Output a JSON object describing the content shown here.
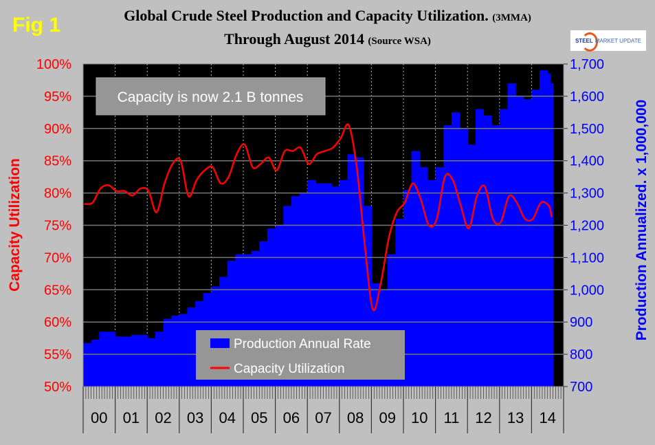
{
  "figure_label": "Fig 1",
  "title_main": "Global Crude Steel Production and Capacity Utilization.",
  "title_main_note": "(3MMA)",
  "title_sub": "Through August 2014",
  "title_sub_note": "(Source WSA)",
  "logo": {
    "bold": "STEEL",
    "rest": "MARKET UPDATE"
  },
  "annotation": "Capacity is now 2.1 B tonnes",
  "colors": {
    "production": "#0000ff",
    "utilization": "#ff0000",
    "plot_bg": "#000000",
    "page_bg": "#c0c0c0"
  },
  "chart_data": {
    "type": "bar+line",
    "title": "Global Crude Steel Production and Capacity Utilization. (3MMA) Through August 2014 (Source WSA)",
    "ylabel_left": "Capacity Utilization",
    "ylabel_right": "Production Annualized. x 1,000,000",
    "ylim_left": [
      50,
      100
    ],
    "ylim_right": [
      700,
      1700
    ],
    "yticks_left": [
      "50%",
      "55%",
      "60%",
      "65%",
      "70%",
      "75%",
      "80%",
      "85%",
      "90%",
      "95%",
      "100%"
    ],
    "yticks_right": [
      "700",
      "800",
      "900",
      "1,000",
      "1,100",
      "1,200",
      "1,300",
      "1,400",
      "1,500",
      "1,600",
      "1,700"
    ],
    "xticks": [
      "00",
      "01",
      "02",
      "03",
      "04",
      "05",
      "06",
      "07",
      "08",
      "09",
      "10",
      "11",
      "12",
      "13",
      "14"
    ],
    "grid": true,
    "legend": {
      "position": "bottom-center",
      "entries": [
        "Production Annual Rate",
        "Capacity Utilization"
      ]
    },
    "x": [
      "2000-01",
      "2000-04",
      "2000-07",
      "2000-10",
      "2001-01",
      "2001-04",
      "2001-07",
      "2001-10",
      "2002-01",
      "2002-04",
      "2002-07",
      "2002-10",
      "2003-01",
      "2003-04",
      "2003-07",
      "2003-10",
      "2004-01",
      "2004-04",
      "2004-07",
      "2004-10",
      "2005-01",
      "2005-04",
      "2005-07",
      "2005-10",
      "2006-01",
      "2006-04",
      "2006-07",
      "2006-10",
      "2007-01",
      "2007-04",
      "2007-07",
      "2007-10",
      "2008-01",
      "2008-04",
      "2008-07",
      "2008-10",
      "2009-01",
      "2009-04",
      "2009-07",
      "2009-10",
      "2010-01",
      "2010-04",
      "2010-07",
      "2010-10",
      "2011-01",
      "2011-04",
      "2011-07",
      "2011-10",
      "2012-01",
      "2012-04",
      "2012-07",
      "2012-10",
      "2013-01",
      "2013-04",
      "2013-07",
      "2013-10",
      "2014-01",
      "2014-04",
      "2014-07",
      "2014-08"
    ],
    "series": [
      {
        "name": "Production Annual Rate",
        "axis": "right",
        "type": "bar",
        "values": [
          835,
          845,
          870,
          870,
          855,
          855,
          860,
          860,
          850,
          870,
          910,
          920,
          925,
          945,
          965,
          990,
          1010,
          1040,
          1090,
          1110,
          1110,
          1120,
          1150,
          1190,
          1200,
          1260,
          1290,
          1300,
          1340,
          1330,
          1330,
          1320,
          1340,
          1420,
          1410,
          1260,
          1020,
          1000,
          1110,
          1220,
          1310,
          1430,
          1380,
          1340,
          1380,
          1510,
          1550,
          1500,
          1450,
          1560,
          1540,
          1510,
          1560,
          1640,
          1600,
          1590,
          1620,
          1680,
          1670,
          1640
        ]
      },
      {
        "name": "Capacity Utilization",
        "axis": "left",
        "type": "line",
        "values": [
          78.3,
          78.5,
          80.7,
          81.2,
          80.3,
          80.3,
          79.6,
          80.7,
          80.3,
          77.0,
          81.5,
          84.5,
          85.0,
          79.5,
          82.0,
          83.5,
          84.0,
          81.5,
          82.5,
          86.0,
          87.5,
          84.0,
          84.5,
          85.5,
          83.5,
          86.5,
          86.5,
          87.0,
          84.5,
          86.0,
          86.5,
          87.0,
          88.5,
          90.5,
          84.0,
          72.0,
          62.0,
          66.0,
          73.0,
          77.0,
          78.5,
          81.5,
          79.0,
          75.0,
          76.0,
          82.5,
          82.0,
          78.0,
          74.5,
          79.5,
          81.0,
          76.0,
          75.5,
          79.5,
          78.5,
          76.0,
          76.0,
          78.5,
          78.0,
          76.3
        ]
      }
    ]
  }
}
